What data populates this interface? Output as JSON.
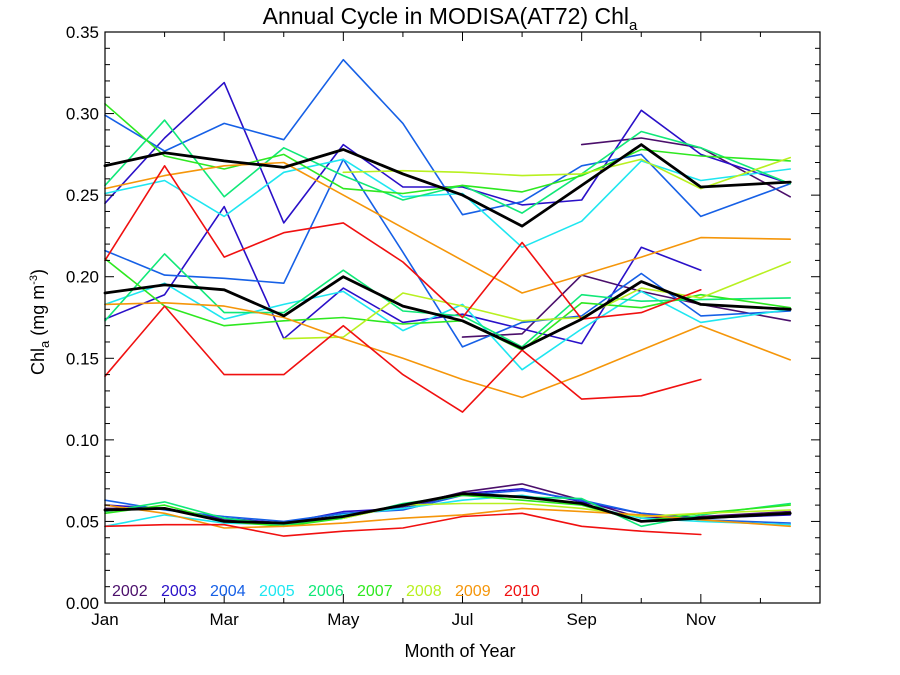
{
  "chart_data": {
    "type": "line",
    "title": "Annual Cycle in MODISA(AT72) Chl",
    "title_subscript": "a",
    "ylabel": "Chl",
    "ylabel_subscript": "a",
    "ylabel_units_open": " (mg m",
    "ylabel_units_exp": "-3",
    "ylabel_units_close": ")",
    "xlabel": "Month of Year",
    "xlim": [
      1,
      13
    ],
    "ylim": [
      0.0,
      0.35
    ],
    "xticks": [
      {
        "value": 1,
        "label": "Jan"
      },
      {
        "value": 3,
        "label": "Mar"
      },
      {
        "value": 5,
        "label": "May"
      },
      {
        "value": 7,
        "label": "Jul"
      },
      {
        "value": 9,
        "label": "Sep"
      },
      {
        "value": 11,
        "label": "Nov"
      }
    ],
    "yticks": [
      {
        "value": 0.0,
        "label": "0.00"
      },
      {
        "value": 0.05,
        "label": "0.05"
      },
      {
        "value": 0.1,
        "label": "0.10"
      },
      {
        "value": 0.15,
        "label": "0.15"
      },
      {
        "value": 0.2,
        "label": "0.20"
      },
      {
        "value": 0.25,
        "label": "0.25"
      },
      {
        "value": 0.3,
        "label": "0.30"
      },
      {
        "value": 0.35,
        "label": "0.35"
      }
    ],
    "grid": false,
    "legend_position": "bottom-left",
    "series": [
      {
        "name": "2002",
        "color": "#4b0f6b",
        "groups": [
          {
            "x": [
              9,
              10,
              11,
              12.5
            ],
            "y": [
              0.281,
              0.285,
              0.279,
              0.249
            ]
          },
          {
            "x": [
              7,
              8,
              9,
              10,
              11,
              12.5
            ],
            "y": [
              0.163,
              0.165,
              0.201,
              0.191,
              0.183,
              0.173
            ]
          },
          {
            "x": [
              1,
              2,
              3,
              4,
              5,
              6,
              7,
              8,
              9,
              10,
              11,
              12.5
            ],
            "y": [
              0.058,
              0.058,
              0.051,
              0.049,
              0.054,
              0.059,
              0.068,
              0.073,
              0.063,
              0.052,
              0.053,
              0.056
            ]
          }
        ]
      },
      {
        "name": "2003",
        "color": "#2a10c8",
        "groups": [
          {
            "x": [
              1,
              2,
              3,
              4,
              5,
              6,
              7,
              8,
              9,
              10,
              11,
              12.5
            ],
            "y": [
              0.245,
              0.285,
              0.319,
              0.233,
              0.281,
              0.255,
              0.255,
              0.244,
              0.247,
              0.302,
              0.275,
              0.257
            ]
          },
          {
            "x": [
              1,
              2,
              3,
              4,
              5,
              6,
              7,
              8,
              9,
              10,
              11
            ],
            "y": [
              0.174,
              0.189,
              0.243,
              0.162,
              0.193,
              0.172,
              0.177,
              0.168,
              0.159,
              0.218,
              0.204
            ]
          },
          {
            "x": [
              1,
              2,
              3,
              4,
              5,
              6,
              7,
              8,
              9,
              10,
              11,
              12.5
            ],
            "y": [
              0.06,
              0.058,
              0.052,
              0.049,
              0.056,
              0.058,
              0.067,
              0.07,
              0.062,
              0.055,
              0.052,
              0.054
            ]
          }
        ]
      },
      {
        "name": "2004",
        "color": "#1660e6",
        "groups": [
          {
            "x": [
              1,
              2,
              3,
              4,
              5,
              6,
              7,
              8,
              9,
              10,
              11,
              12.5
            ],
            "y": [
              0.299,
              0.277,
              0.294,
              0.284,
              0.333,
              0.294,
              0.238,
              0.246,
              0.268,
              0.275,
              0.237,
              0.257
            ]
          },
          {
            "x": [
              1,
              2,
              3,
              4,
              5,
              6,
              7,
              8,
              9,
              10,
              11,
              12.5
            ],
            "y": [
              0.216,
              0.201,
              0.199,
              0.196,
              0.272,
              0.215,
              0.157,
              0.172,
              0.176,
              0.202,
              0.176,
              0.179
            ]
          },
          {
            "x": [
              1,
              2,
              3,
              4,
              5,
              6,
              7,
              8,
              9,
              10,
              11,
              12.5
            ],
            "y": [
              0.063,
              0.057,
              0.053,
              0.05,
              0.055,
              0.057,
              0.066,
              0.069,
              0.063,
              0.055,
              0.051,
              0.049
            ]
          }
        ]
      },
      {
        "name": "2005",
        "color": "#1ee6f0",
        "groups": [
          {
            "x": [
              1,
              2,
              3,
              4,
              5,
              6,
              7,
              8,
              9,
              10,
              11,
              12.5
            ],
            "y": [
              0.251,
              0.259,
              0.237,
              0.264,
              0.272,
              0.249,
              0.251,
              0.218,
              0.234,
              0.271,
              0.259,
              0.266
            ]
          },
          {
            "x": [
              1,
              2,
              3,
              4,
              5,
              6,
              7,
              8,
              9,
              10,
              11,
              12.5
            ],
            "y": [
              0.183,
              0.196,
              0.174,
              0.183,
              0.191,
              0.167,
              0.183,
              0.143,
              0.168,
              0.191,
              0.172,
              0.18
            ]
          },
          {
            "x": [
              1,
              2,
              3,
              4,
              5,
              6,
              7,
              8,
              9,
              10,
              11,
              12.5
            ],
            "y": [
              0.047,
              0.054,
              0.049,
              0.048,
              0.054,
              0.058,
              0.063,
              0.066,
              0.06,
              0.052,
              0.05,
              0.048
            ]
          }
        ]
      },
      {
        "name": "2006",
        "color": "#10e878",
        "groups": [
          {
            "x": [
              1,
              2,
              3,
              4,
              5,
              6,
              7,
              8,
              9,
              10,
              11,
              12.5
            ],
            "y": [
              0.256,
              0.296,
              0.249,
              0.279,
              0.262,
              0.247,
              0.256,
              0.239,
              0.263,
              0.289,
              0.279,
              0.257
            ]
          },
          {
            "x": [
              1,
              2,
              3,
              4,
              5,
              6,
              7,
              8,
              9,
              10,
              11,
              12.5
            ],
            "y": [
              0.173,
              0.214,
              0.178,
              0.178,
              0.204,
              0.179,
              0.176,
              0.157,
              0.189,
              0.185,
              0.186,
              0.187
            ]
          },
          {
            "x": [
              1,
              2,
              3,
              4,
              5,
              6,
              7,
              8,
              9,
              10,
              11,
              12.5
            ],
            "y": [
              0.056,
              0.062,
              0.052,
              0.048,
              0.052,
              0.061,
              0.066,
              0.065,
              0.064,
              0.047,
              0.054,
              0.061
            ]
          }
        ]
      },
      {
        "name": "2007",
        "color": "#2ee820",
        "groups": [
          {
            "x": [
              1,
              2,
              3,
              4,
              5,
              6,
              7,
              8,
              9,
              10,
              11,
              12.5
            ],
            "y": [
              0.306,
              0.274,
              0.266,
              0.275,
              0.254,
              0.251,
              0.256,
              0.252,
              0.262,
              0.278,
              0.274,
              0.271
            ]
          },
          {
            "x": [
              1,
              2,
              3,
              4,
              5,
              6,
              7,
              8,
              9,
              10,
              11,
              12.5
            ],
            "y": [
              0.211,
              0.182,
              0.17,
              0.173,
              0.175,
              0.171,
              0.173,
              0.155,
              0.184,
              0.181,
              0.189,
              0.181
            ]
          },
          {
            "x": [
              1,
              2,
              3,
              4,
              5,
              6,
              7,
              8,
              9,
              10,
              11,
              12.5
            ],
            "y": [
              0.055,
              0.06,
              0.05,
              0.047,
              0.052,
              0.06,
              0.066,
              0.063,
              0.06,
              0.05,
              0.055,
              0.06
            ]
          }
        ]
      },
      {
        "name": "2008",
        "color": "#b8f020",
        "groups": [
          {
            "x": [
              5,
              6,
              7,
              8,
              9,
              10,
              11,
              12.5
            ],
            "y": [
              0.264,
              0.265,
              0.264,
              0.262,
              0.263,
              0.272,
              0.254,
              0.273
            ]
          },
          {
            "x": [
              4,
              5,
              6,
              7,
              8,
              9,
              10,
              11,
              12.5
            ],
            "y": [
              0.162,
              0.163,
              0.19,
              0.182,
              0.173,
              0.175,
              0.193,
              0.187,
              0.209
            ]
          },
          {
            "x": [
              5,
              6,
              7,
              8,
              9,
              10,
              11,
              12.5
            ],
            "y": [
              0.052,
              0.06,
              0.061,
              0.061,
              0.058,
              0.053,
              0.055,
              0.057
            ]
          }
        ]
      },
      {
        "name": "2009",
        "color": "#f5960a",
        "groups": [
          {
            "x": [
              1,
              2,
              3,
              4,
              5,
              6,
              7,
              8,
              9,
              10,
              11,
              12.5
            ],
            "y": [
              0.254,
              0.262,
              0.268,
              0.27,
              0.25,
              0.23,
              0.21,
              0.19,
              0.201,
              0.212,
              0.224,
              0.223
            ]
          },
          {
            "x": [
              1,
              2,
              3,
              4,
              5,
              6,
              7,
              8,
              9,
              10,
              11,
              12.5
            ],
            "y": [
              0.183,
              0.184,
              0.182,
              0.175,
              0.162,
              0.15,
              0.137,
              0.126,
              0.14,
              0.155,
              0.17,
              0.149
            ]
          },
          {
            "x": [
              1,
              2,
              3,
              4,
              5,
              6,
              7,
              8,
              9,
              10,
              11,
              12.5
            ],
            "y": [
              0.06,
              0.055,
              0.046,
              0.047,
              0.049,
              0.052,
              0.054,
              0.058,
              0.056,
              0.054,
              0.051,
              0.047
            ]
          }
        ]
      },
      {
        "name": "2010",
        "color": "#f01010",
        "groups": [
          {
            "x": [
              1,
              2,
              3,
              4,
              5,
              6,
              7,
              8,
              9,
              10,
              11
            ],
            "y": [
              0.21,
              0.268,
              0.212,
              0.227,
              0.233,
              0.209,
              0.175,
              0.221,
              0.174,
              0.178,
              0.192
            ]
          },
          {
            "x": [
              1,
              2,
              3,
              4,
              5,
              6,
              7,
              8,
              9,
              10,
              11
            ],
            "y": [
              0.139,
              0.182,
              0.14,
              0.14,
              0.17,
              0.14,
              0.117,
              0.155,
              0.125,
              0.127,
              0.137
            ]
          },
          {
            "x": [
              1,
              2,
              3,
              4,
              5,
              6,
              7,
              8,
              9,
              10,
              11
            ],
            "y": [
              0.047,
              0.048,
              0.048,
              0.041,
              0.044,
              0.046,
              0.053,
              0.055,
              0.047,
              0.044,
              0.042
            ]
          }
        ]
      },
      {
        "color": "#000000",
        "groups": [
          {
            "x": [
              1,
              2,
              3,
              4,
              5,
              6,
              7,
              8,
              9,
              10,
              11,
              12.5
            ],
            "y": [
              0.268,
              0.276,
              0.271,
              0.267,
              0.278,
              0.263,
              0.25,
              0.231,
              0.256,
              0.281,
              0.255,
              0.258
            ]
          },
          {
            "x": [
              1,
              2,
              3,
              4,
              5,
              6,
              7,
              8,
              9,
              10,
              11,
              12.5
            ],
            "y": [
              0.19,
              0.195,
              0.192,
              0.176,
              0.2,
              0.182,
              0.173,
              0.156,
              0.174,
              0.197,
              0.183,
              0.18
            ]
          },
          {
            "x": [
              1,
              2,
              3,
              4,
              5,
              6,
              7,
              8,
              9,
              10,
              11,
              12.5
            ],
            "y": [
              0.057,
              0.058,
              0.05,
              0.049,
              0.053,
              0.06,
              0.067,
              0.065,
              0.061,
              0.05,
              0.052,
              0.055
            ]
          }
        ]
      }
    ]
  }
}
